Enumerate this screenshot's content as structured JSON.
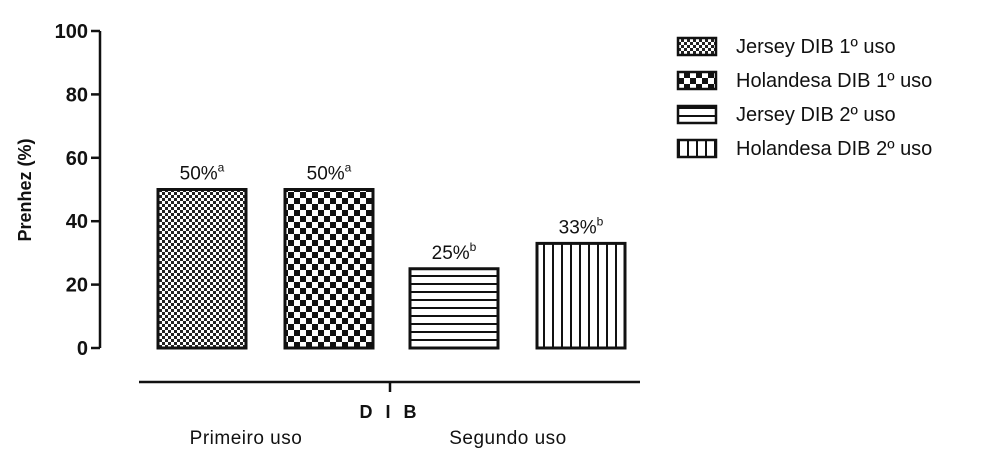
{
  "chart_data": {
    "type": "bar",
    "ylabel": "Prenhez (%)",
    "xlabel": "D I B",
    "ylim": [
      0,
      100
    ],
    "yticks": [
      0,
      20,
      40,
      60,
      80,
      100
    ],
    "group_labels": [
      "Primeiro uso",
      "Segundo uso"
    ],
    "legend_position": "right",
    "series": [
      {
        "name": "Jersey DIB 1º uso",
        "value": 50,
        "label": "50%",
        "sup": "a",
        "pattern": "fine-checker-icon"
      },
      {
        "name": "Holandesa DIB 1º uso",
        "value": 50,
        "label": "50%",
        "sup": "a",
        "pattern": "checker-icon"
      },
      {
        "name": "Jersey DIB 2º uso",
        "value": 25,
        "label": "25%",
        "sup": "b",
        "pattern": "horizontal-stripes-icon"
      },
      {
        "name": "Holandesa DIB 2º uso",
        "value": 33,
        "label": "33%",
        "sup": "b",
        "pattern": "vertical-stripes-icon"
      }
    ]
  }
}
